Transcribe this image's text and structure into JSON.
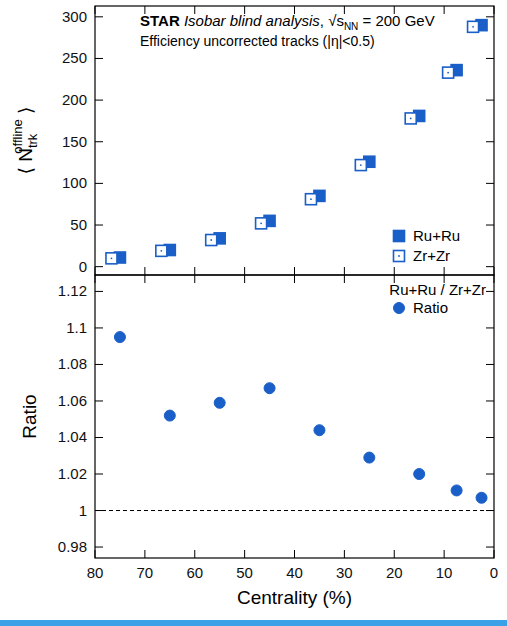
{
  "chart_data": [
    {
      "type": "scatter",
      "title": "STAR Isobar blind analysis, √sNN = 200 GeV",
      "subtitle": "Efficiency uncorrected tracks (|η|<0.5)",
      "y_label": "⟨ Ntrkoffline ⟩",
      "series": [
        {
          "name": "Ru+Ru",
          "color": "#1a5fc8",
          "marker": "square",
          "x": [
            75,
            65,
            55,
            45,
            35,
            25,
            15,
            7.5,
            2.5
          ],
          "values": [
            11,
            20,
            34,
            55,
            85,
            126,
            181,
            236,
            290
          ]
        },
        {
          "name": "Zr+Zr",
          "color": "#1a5fc8",
          "marker": "open-square",
          "x": [
            76.7,
            66.7,
            56.7,
            46.7,
            36.7,
            26.7,
            16.7,
            9.2,
            4.2
          ],
          "values": [
            10,
            19,
            32,
            52,
            81,
            122,
            178,
            233,
            288
          ]
        }
      ],
      "xlim": [
        80,
        0
      ],
      "xticks": [
        80,
        70,
        60,
        50,
        40,
        30,
        20,
        10,
        0
      ],
      "ylim": [
        -10,
        313
      ],
      "yticks": [
        0,
        50,
        100,
        150,
        200,
        250,
        300
      ],
      "tick_labels": "y",
      "legend": "lower right"
    },
    {
      "type": "scatter",
      "x_label": "Centrality (%)",
      "y_label": "Ratio",
      "annotations": [
        "Ru+Ru / Zr+Zr"
      ],
      "x": [
        75,
        65,
        55,
        45,
        35,
        25,
        15,
        7.5,
        2.5
      ],
      "series": [
        {
          "name": "Ratio",
          "color": "#1a5fc8",
          "marker": "circle",
          "values": [
            1.095,
            1.052,
            1.059,
            1.067,
            1.044,
            1.029,
            1.02,
            1.011,
            1.007
          ]
        }
      ],
      "hline": 1,
      "xlim": [
        80,
        0
      ],
      "xticks": [
        80,
        70,
        60,
        50,
        40,
        30,
        20,
        10,
        0
      ],
      "ylim": [
        0.974,
        1.129
      ],
      "yticks": [
        0.98,
        1,
        1.02,
        1.04,
        1.06,
        1.08,
        1.1,
        1.12
      ],
      "legend": "upper right"
    }
  ]
}
